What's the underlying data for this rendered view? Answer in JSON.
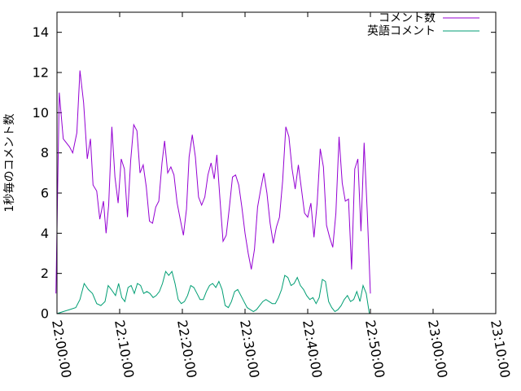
{
  "chart_data": {
    "type": "line",
    "title": "",
    "xlabel": "",
    "ylabel": "1秒毎のコメント数",
    "ylim": [
      0,
      15
    ],
    "xlim": [
      "22:00:00",
      "23:10:00"
    ],
    "y_ticks": [
      "0",
      "2",
      "4",
      "6",
      "8",
      "10",
      "12",
      "14"
    ],
    "x_ticks": [
      "22:00:00",
      "22:10:00",
      "22:20:00",
      "22:30:00",
      "22:40:00",
      "22:50:00",
      "23:00:00",
      "23:10:00"
    ],
    "grid": false,
    "legend_position": "top-right",
    "series": [
      {
        "name": "コメント数",
        "color": "#9400d3",
        "points": [
          [
            "21:59:50",
            1.0
          ],
          [
            "22:00:22",
            11.0
          ],
          [
            "22:01:00",
            8.7
          ],
          [
            "22:02:00",
            8.3
          ],
          [
            "22:02:30",
            8.0
          ],
          [
            "22:03:10",
            9.0
          ],
          [
            "22:03:40",
            12.1
          ],
          [
            "22:04:15",
            10.5
          ],
          [
            "22:04:50",
            7.7
          ],
          [
            "22:05:20",
            8.7
          ],
          [
            "22:05:45",
            6.4
          ],
          [
            "22:06:20",
            6.1
          ],
          [
            "22:06:50",
            4.7
          ],
          [
            "22:07:25",
            5.6
          ],
          [
            "22:07:50",
            4.0
          ],
          [
            "22:08:15",
            5.4
          ],
          [
            "22:08:45",
            9.3
          ],
          [
            "22:09:15",
            6.8
          ],
          [
            "22:09:45",
            5.5
          ],
          [
            "22:10:15",
            7.7
          ],
          [
            "22:10:45",
            7.2
          ],
          [
            "22:11:15",
            4.8
          ],
          [
            "22:11:45",
            7.6
          ],
          [
            "22:12:15",
            9.4
          ],
          [
            "22:12:45",
            9.1
          ],
          [
            "22:13:15",
            7.0
          ],
          [
            "22:13:45",
            7.4
          ],
          [
            "22:14:15",
            6.3
          ],
          [
            "22:14:45",
            4.6
          ],
          [
            "22:15:15",
            4.5
          ],
          [
            "22:15:45",
            5.3
          ],
          [
            "22:16:15",
            5.6
          ],
          [
            "22:16:45",
            7.5
          ],
          [
            "22:17:10",
            8.6
          ],
          [
            "22:17:40",
            7.0
          ],
          [
            "22:18:10",
            7.3
          ],
          [
            "22:18:40",
            6.9
          ],
          [
            "22:19:10",
            5.5
          ],
          [
            "22:19:40",
            4.7
          ],
          [
            "22:20:10",
            3.9
          ],
          [
            "22:20:40",
            5.2
          ],
          [
            "22:21:05",
            7.8
          ],
          [
            "22:21:35",
            8.9
          ],
          [
            "22:22:05",
            7.8
          ],
          [
            "22:22:35",
            5.8
          ],
          [
            "22:23:05",
            5.4
          ],
          [
            "22:23:35",
            5.8
          ],
          [
            "22:24:05",
            6.9
          ],
          [
            "22:24:35",
            7.5
          ],
          [
            "22:25:05",
            6.7
          ],
          [
            "22:25:30",
            7.9
          ],
          [
            "22:26:00",
            5.7
          ],
          [
            "22:26:30",
            3.6
          ],
          [
            "22:27:00",
            3.9
          ],
          [
            "22:27:30",
            5.3
          ],
          [
            "22:28:00",
            6.8
          ],
          [
            "22:28:30",
            6.9
          ],
          [
            "22:29:00",
            6.4
          ],
          [
            "22:29:30",
            5.3
          ],
          [
            "22:30:00",
            4.0
          ],
          [
            "22:30:30",
            3.0
          ],
          [
            "22:31:00",
            2.2
          ],
          [
            "22:31:30",
            3.2
          ],
          [
            "22:32:00",
            5.3
          ],
          [
            "22:32:30",
            6.2
          ],
          [
            "22:33:00",
            7.0
          ],
          [
            "22:33:30",
            6.0
          ],
          [
            "22:34:00",
            4.5
          ],
          [
            "22:34:30",
            3.5
          ],
          [
            "22:35:00",
            4.3
          ],
          [
            "22:35:30",
            4.8
          ],
          [
            "22:36:00",
            6.6
          ],
          [
            "22:36:30",
            9.3
          ],
          [
            "22:37:00",
            8.8
          ],
          [
            "22:37:30",
            7.2
          ],
          [
            "22:38:00",
            6.2
          ],
          [
            "22:38:30",
            7.4
          ],
          [
            "22:39:00",
            6.2
          ],
          [
            "22:39:30",
            5.0
          ],
          [
            "22:40:00",
            4.8
          ],
          [
            "22:40:30",
            5.5
          ],
          [
            "22:41:00",
            3.8
          ],
          [
            "22:41:30",
            5.5
          ],
          [
            "22:42:00",
            8.2
          ],
          [
            "22:42:30",
            7.3
          ],
          [
            "22:43:00",
            4.4
          ],
          [
            "22:43:30",
            3.8
          ],
          [
            "22:44:00",
            3.3
          ],
          [
            "22:44:30",
            5.0
          ],
          [
            "22:45:00",
            8.8
          ],
          [
            "22:45:30",
            6.5
          ],
          [
            "22:46:00",
            5.6
          ],
          [
            "22:46:30",
            5.7
          ],
          [
            "22:47:00",
            2.2
          ],
          [
            "22:47:30",
            7.2
          ],
          [
            "22:48:00",
            7.7
          ],
          [
            "22:48:30",
            4.1
          ],
          [
            "22:49:00",
            8.5
          ],
          [
            "22:49:30",
            5.0
          ],
          [
            "22:50:00",
            1.0
          ]
        ]
      },
      {
        "name": "英語コメント",
        "color": "#009e73",
        "points": [
          [
            "22:00:00",
            0.0
          ],
          [
            "22:01:00",
            0.1
          ],
          [
            "22:02:00",
            0.2
          ],
          [
            "22:03:00",
            0.3
          ],
          [
            "22:03:40",
            0.7
          ],
          [
            "22:04:20",
            1.5
          ],
          [
            "22:05:00",
            1.2
          ],
          [
            "22:05:40",
            1.0
          ],
          [
            "22:06:20",
            0.5
          ],
          [
            "22:07:00",
            0.4
          ],
          [
            "22:07:40",
            0.6
          ],
          [
            "22:08:10",
            1.4
          ],
          [
            "22:08:40",
            1.2
          ],
          [
            "22:09:20",
            0.9
          ],
          [
            "22:09:50",
            1.5
          ],
          [
            "22:10:20",
            0.8
          ],
          [
            "22:10:50",
            0.6
          ],
          [
            "22:11:20",
            1.3
          ],
          [
            "22:11:50",
            1.4
          ],
          [
            "22:12:20",
            1.0
          ],
          [
            "22:12:50",
            1.5
          ],
          [
            "22:13:20",
            1.4
          ],
          [
            "22:13:50",
            1.0
          ],
          [
            "22:14:20",
            1.1
          ],
          [
            "22:14:50",
            1.0
          ],
          [
            "22:15:20",
            0.8
          ],
          [
            "22:15:50",
            0.9
          ],
          [
            "22:16:20",
            1.1
          ],
          [
            "22:16:50",
            1.5
          ],
          [
            "22:17:20",
            2.1
          ],
          [
            "22:17:50",
            1.9
          ],
          [
            "22:18:20",
            2.1
          ],
          [
            "22:18:50",
            1.5
          ],
          [
            "22:19:20",
            0.7
          ],
          [
            "22:19:50",
            0.5
          ],
          [
            "22:20:20",
            0.6
          ],
          [
            "22:20:50",
            0.9
          ],
          [
            "22:21:20",
            1.4
          ],
          [
            "22:21:50",
            1.3
          ],
          [
            "22:22:20",
            1.0
          ],
          [
            "22:22:50",
            0.7
          ],
          [
            "22:23:20",
            0.7
          ],
          [
            "22:23:50",
            1.1
          ],
          [
            "22:24:20",
            1.4
          ],
          [
            "22:24:50",
            1.5
          ],
          [
            "22:25:20",
            1.3
          ],
          [
            "22:25:50",
            1.6
          ],
          [
            "22:26:20",
            1.2
          ],
          [
            "22:26:50",
            0.4
          ],
          [
            "22:27:20",
            0.3
          ],
          [
            "22:27:50",
            0.6
          ],
          [
            "22:28:20",
            1.1
          ],
          [
            "22:28:50",
            1.2
          ],
          [
            "22:29:20",
            0.9
          ],
          [
            "22:29:50",
            0.6
          ],
          [
            "22:30:20",
            0.3
          ],
          [
            "22:30:50",
            0.2
          ],
          [
            "22:31:20",
            0.1
          ],
          [
            "22:31:50",
            0.2
          ],
          [
            "22:32:20",
            0.4
          ],
          [
            "22:32:50",
            0.6
          ],
          [
            "22:33:20",
            0.7
          ],
          [
            "22:33:50",
            0.6
          ],
          [
            "22:34:20",
            0.5
          ],
          [
            "22:34:50",
            0.5
          ],
          [
            "22:35:20",
            0.8
          ],
          [
            "22:35:50",
            1.2
          ],
          [
            "22:36:20",
            1.9
          ],
          [
            "22:36:50",
            1.8
          ],
          [
            "22:37:20",
            1.4
          ],
          [
            "22:37:50",
            1.5
          ],
          [
            "22:38:20",
            1.8
          ],
          [
            "22:38:50",
            1.4
          ],
          [
            "22:39:20",
            1.2
          ],
          [
            "22:39:50",
            0.9
          ],
          [
            "22:40:20",
            0.7
          ],
          [
            "22:40:50",
            0.8
          ],
          [
            "22:41:20",
            0.5
          ],
          [
            "22:41:50",
            0.8
          ],
          [
            "22:42:20",
            1.7
          ],
          [
            "22:42:50",
            1.6
          ],
          [
            "22:43:20",
            0.6
          ],
          [
            "22:43:50",
            0.3
          ],
          [
            "22:44:20",
            0.1
          ],
          [
            "22:44:50",
            0.2
          ],
          [
            "22:45:20",
            0.4
          ],
          [
            "22:45:50",
            0.7
          ],
          [
            "22:46:20",
            0.9
          ],
          [
            "22:46:50",
            0.6
          ],
          [
            "22:47:20",
            0.7
          ],
          [
            "22:47:50",
            1.1
          ],
          [
            "22:48:20",
            0.6
          ],
          [
            "22:48:50",
            1.4
          ],
          [
            "22:49:20",
            1.0
          ],
          [
            "22:49:50",
            0.0
          ]
        ]
      }
    ]
  }
}
